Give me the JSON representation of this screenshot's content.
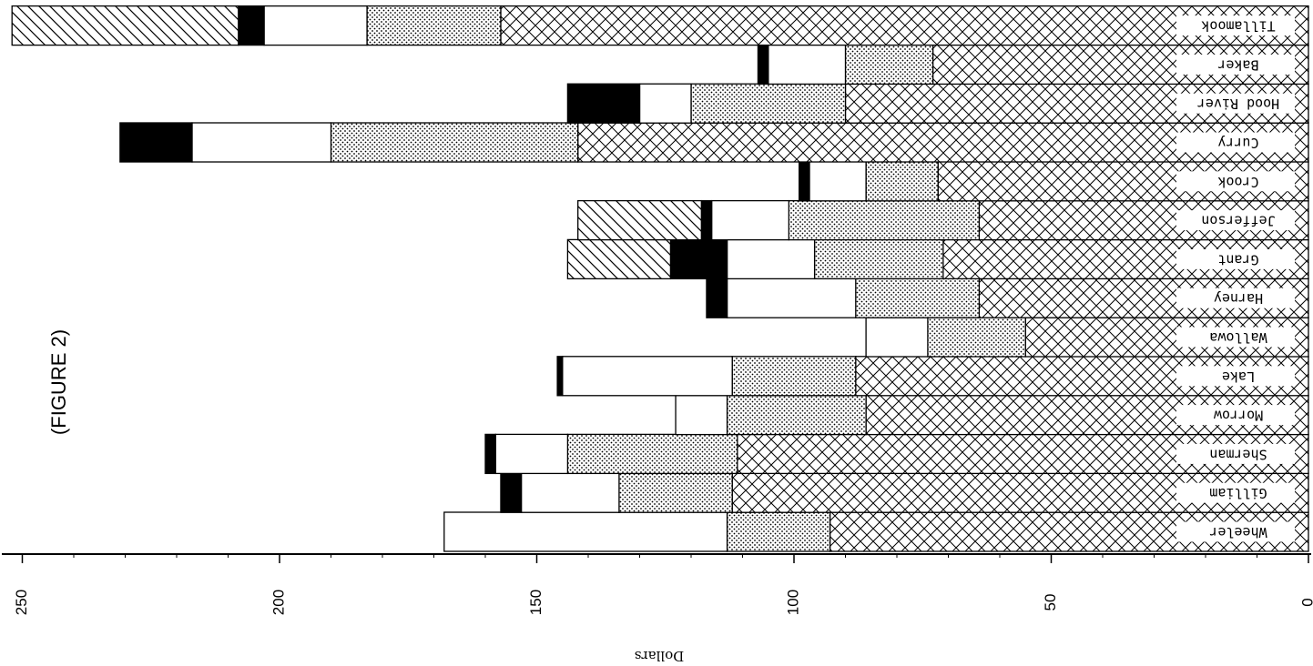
{
  "chart_data": {
    "type": "bar",
    "stacked": true,
    "orientation": "horizontal",
    "figure_label": "(FIGURE 2)",
    "xlabel": "Dollars",
    "ylabel": "",
    "xlim": [
      0,
      250
    ],
    "xticks": [
      "250",
      "200",
      "150",
      "100",
      "50",
      "0"
    ],
    "grid": false,
    "legend": "none",
    "categories": [
      "Wheeler",
      "Gilliam",
      "Sherman",
      "Morrow",
      "Lake",
      "Wallowa",
      "Harney",
      "Grant",
      "Jefferson",
      "Crook",
      "Curry",
      "Hood River",
      "Baker",
      "Tillamook"
    ],
    "series": [
      {
        "pattern": "crosshatch",
        "values": [
          93,
          112,
          111,
          86,
          88,
          55,
          64,
          71,
          64,
          72,
          142,
          90,
          73,
          157
        ]
      },
      {
        "pattern": "dots",
        "values": [
          20,
          22,
          33,
          27,
          24,
          19,
          24,
          25,
          37,
          14,
          48,
          30,
          17,
          26
        ]
      },
      {
        "pattern": "white",
        "values": [
          55,
          19,
          14,
          10,
          33,
          12,
          25,
          17,
          15,
          11,
          27,
          10,
          15,
          20
        ]
      },
      {
        "pattern": "black",
        "values": [
          0,
          4,
          2,
          0,
          1,
          0,
          4,
          11,
          2,
          2,
          14,
          14,
          2,
          5
        ]
      },
      {
        "pattern": "diagonal",
        "values": [
          0,
          0,
          0,
          0,
          0,
          0,
          0,
          20,
          24,
          0,
          0,
          0,
          0,
          44
        ]
      }
    ],
    "colors": {
      "ink": "#000000",
      "paper": "#ffffff",
      "solid": "#000000"
    }
  }
}
